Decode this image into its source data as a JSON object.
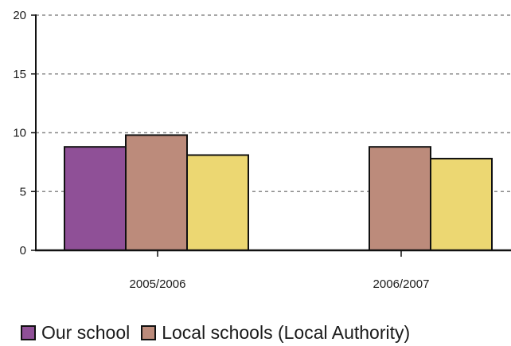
{
  "chart_data": {
    "type": "bar",
    "categories": [
      "2005/2006",
      "2006/2007"
    ],
    "series": [
      {
        "name": "Our school",
        "color": "#8f5097",
        "values": [
          8.8,
          null
        ]
      },
      {
        "name": "Local schools (Local Authority)",
        "color": "#bc8b7b",
        "values": [
          9.8,
          8.8
        ]
      },
      {
        "name": "",
        "color": "#ecd772",
        "values": [
          8.1,
          7.8
        ]
      }
    ],
    "ylim": [
      0,
      20
    ],
    "yticks": [
      0,
      5,
      10,
      15,
      20
    ],
    "grid": true,
    "legend_position": "bottom"
  }
}
